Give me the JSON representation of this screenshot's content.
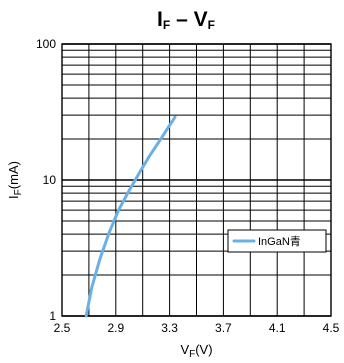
{
  "chart_data": {
    "type": "line",
    "title": {
      "main": "I",
      "sub1": "F",
      "dash": " – V",
      "sub2": "F"
    },
    "xlabel": {
      "main": "V",
      "sub": "F",
      "unit": "(V)"
    },
    "ylabel": {
      "main": "I",
      "sub": "F",
      "unit": "(mA)"
    },
    "xlim": [
      2.5,
      4.5
    ],
    "ylim": [
      1,
      100
    ],
    "y_scale": "log",
    "x_ticks": [
      "2.5",
      "2.9",
      "3.3",
      "3.7",
      "4.1",
      "4.5"
    ],
    "x_tick_values": [
      2.5,
      2.9,
      3.3,
      3.7,
      4.1,
      4.5
    ],
    "y_ticks": [
      "1",
      "10",
      "100"
    ],
    "y_tick_values": [
      1,
      10,
      100
    ],
    "grid": true,
    "legend_position": "right",
    "series": [
      {
        "name": "InGaN青",
        "color": "#6ab0e6",
        "x": [
          2.68,
          2.72,
          2.78,
          2.85,
          2.92,
          3.0,
          3.08,
          3.15,
          3.22,
          3.28,
          3.34
        ],
        "y": [
          1.0,
          1.6,
          2.6,
          4.1,
          6.0,
          8.4,
          11.5,
          15.0,
          19.0,
          23.5,
          29.0
        ]
      }
    ]
  }
}
